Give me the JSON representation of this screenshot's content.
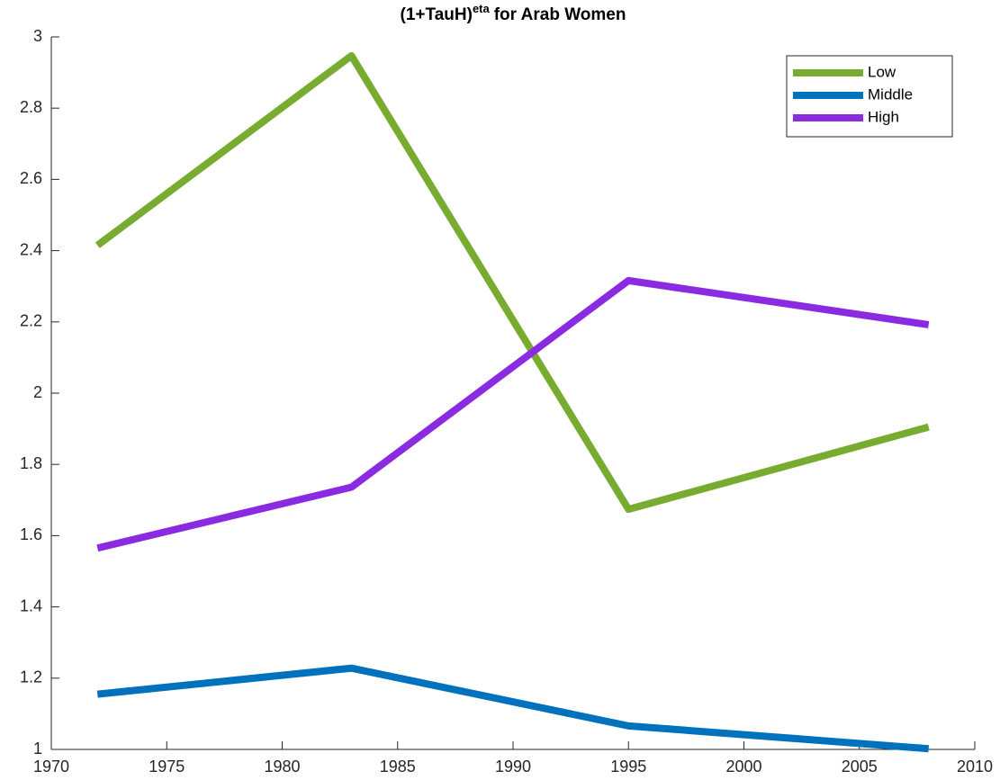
{
  "chart_data": {
    "type": "line",
    "title": {
      "text": "(1+TauH)",
      "superscript": "eta",
      "suffix": "for Arab Women"
    },
    "x": [
      1972,
      1983,
      1995,
      2008
    ],
    "series": [
      {
        "name": "Low",
        "color": "#77ac30",
        "values": [
          2.415,
          2.947,
          1.674,
          1.905
        ]
      },
      {
        "name": "Middle",
        "color": "#0072bd",
        "values": [
          1.155,
          1.228,
          1.066,
          1.002
        ]
      },
      {
        "name": "High",
        "color": "#8a2be2",
        "values": [
          1.565,
          1.736,
          2.316,
          2.192
        ]
      }
    ],
    "xlim": [
      1970,
      2010
    ],
    "xticks": [
      1970,
      1975,
      1980,
      1985,
      1990,
      1995,
      2000,
      2005,
      2010
    ],
    "ylim": [
      1,
      3
    ],
    "yticks": [
      1,
      1.2,
      1.4,
      1.6,
      1.8,
      2,
      2.2,
      2.4,
      2.6,
      2.8,
      3
    ],
    "grid": false,
    "legend": "northeast"
  }
}
